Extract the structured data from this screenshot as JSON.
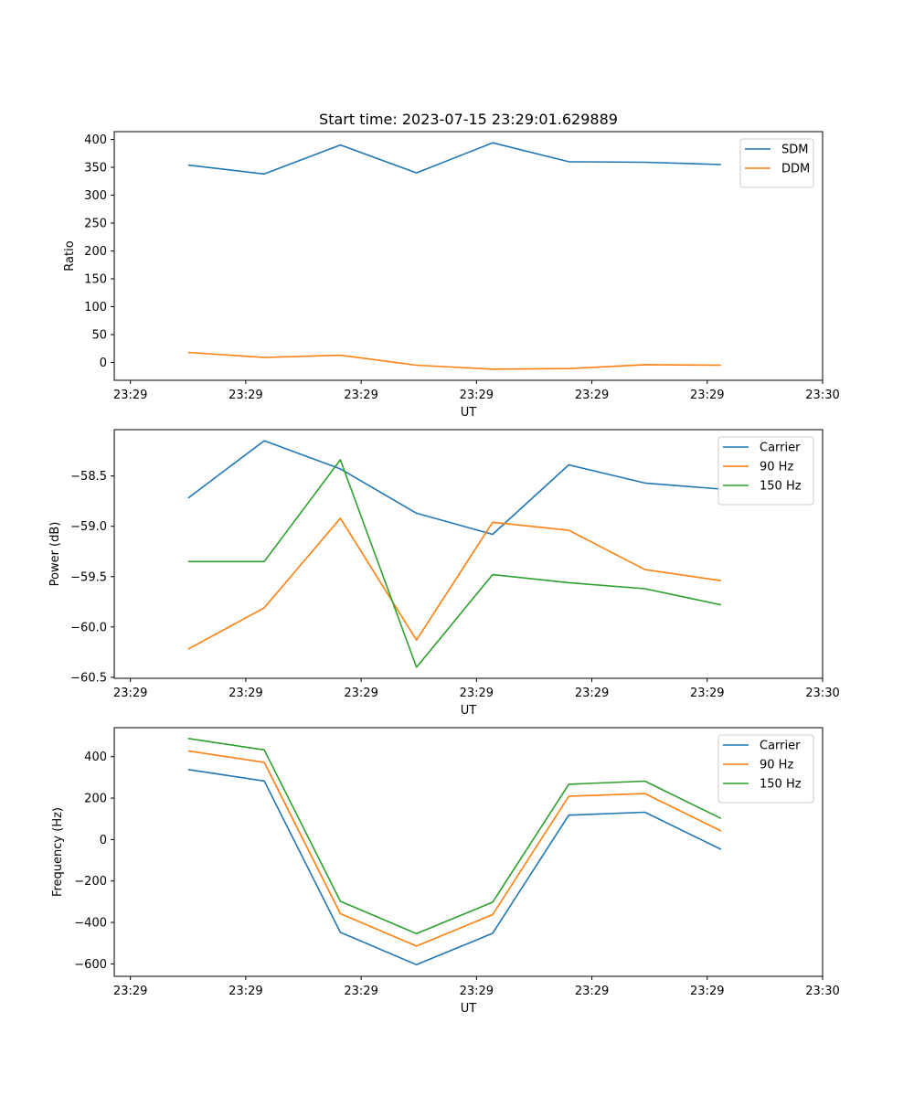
{
  "chart_data": [
    {
      "type": "line",
      "title": "Start time: 2023-07-15 23:29:01.629889",
      "xlabel": "UT",
      "ylabel": "Ratio",
      "x": [
        0.5,
        1.16,
        1.82,
        2.48,
        3.14,
        3.8,
        4.46,
        5.12
      ],
      "xlim": [
        -0.14,
        6.0
      ],
      "xticks": [
        0,
        1,
        2,
        3,
        4,
        5,
        6
      ],
      "xtick_labels": [
        "23:29",
        "23:29",
        "23:29",
        "23:29",
        "23:29",
        "23:29",
        "23:30"
      ],
      "ylim": [
        -32,
        414
      ],
      "yticks": [
        0,
        50,
        100,
        150,
        200,
        250,
        300,
        350,
        400
      ],
      "ytick_labels": [
        "0",
        "50",
        "100",
        "150",
        "200",
        "250",
        "300",
        "350",
        "400"
      ],
      "legend": "top-right",
      "series": [
        {
          "name": "SDM",
          "color": "#1f77b4",
          "values": [
            354,
            338,
            390,
            340,
            394,
            360,
            359,
            355
          ]
        },
        {
          "name": "DDM",
          "color": "#ff7f0e",
          "values": [
            18,
            9,
            13,
            -5,
            -12,
            -11,
            -4,
            -5
          ]
        }
      ]
    },
    {
      "type": "line",
      "title": "",
      "xlabel": "UT",
      "ylabel": "Power (dB)",
      "x": [
        0.5,
        1.16,
        1.82,
        2.48,
        3.14,
        3.8,
        4.46,
        5.12
      ],
      "xlim": [
        -0.14,
        6.0
      ],
      "xticks": [
        0,
        1,
        2,
        3,
        4,
        5,
        6
      ],
      "xtick_labels": [
        "23:29",
        "23:29",
        "23:29",
        "23:29",
        "23:29",
        "23:29",
        "23:30"
      ],
      "ylim": [
        -60.51,
        -58.04
      ],
      "yticks": [
        -60.5,
        -60.0,
        -59.5,
        -59.0,
        -58.5
      ],
      "ytick_labels": [
        "−60.5",
        "−60.0",
        "−59.5",
        "−59.0",
        "−58.5"
      ],
      "legend": "top-right",
      "series": [
        {
          "name": "Carrier",
          "color": "#1f77b4",
          "values": [
            -58.72,
            -58.15,
            -58.43,
            -58.87,
            -59.08,
            -58.39,
            -58.57,
            -58.63
          ]
        },
        {
          "name": "90 Hz",
          "color": "#ff7f0e",
          "values": [
            -60.22,
            -59.81,
            -58.92,
            -60.13,
            -58.96,
            -59.04,
            -59.43,
            -59.54
          ]
        },
        {
          "name": "150 Hz",
          "color": "#2ca02c",
          "values": [
            -59.35,
            -59.35,
            -58.34,
            -60.4,
            -59.48,
            -59.56,
            -59.62,
            -59.78
          ]
        }
      ]
    },
    {
      "type": "line",
      "title": "",
      "xlabel": "UT",
      "ylabel": "Frequency (Hz)",
      "x": [
        0.5,
        1.16,
        1.82,
        2.48,
        3.14,
        3.8,
        4.46,
        5.12
      ],
      "xlim": [
        -0.14,
        6.0
      ],
      "xticks": [
        0,
        1,
        2,
        3,
        4,
        5,
        6
      ],
      "xtick_labels": [
        "23:29",
        "23:29",
        "23:29",
        "23:29",
        "23:29",
        "23:29",
        "23:30"
      ],
      "ylim": [
        -660,
        540
      ],
      "yticks": [
        -600,
        -400,
        -200,
        0,
        200,
        400
      ],
      "ytick_labels": [
        "−600",
        "−400",
        "−200",
        "0",
        "200",
        "400"
      ],
      "legend": "top-right",
      "series": [
        {
          "name": "Carrier",
          "color": "#1f77b4",
          "values": [
            338,
            283,
            -448,
            -604,
            -452,
            118,
            132,
            -47
          ]
        },
        {
          "name": "90 Hz",
          "color": "#ff7f0e",
          "values": [
            428,
            373,
            -358,
            -514,
            -362,
            209,
            222,
            42
          ]
        },
        {
          "name": "150 Hz",
          "color": "#2ca02c",
          "values": [
            488,
            433,
            -298,
            -454,
            -302,
            267,
            282,
            102
          ]
        }
      ]
    }
  ]
}
